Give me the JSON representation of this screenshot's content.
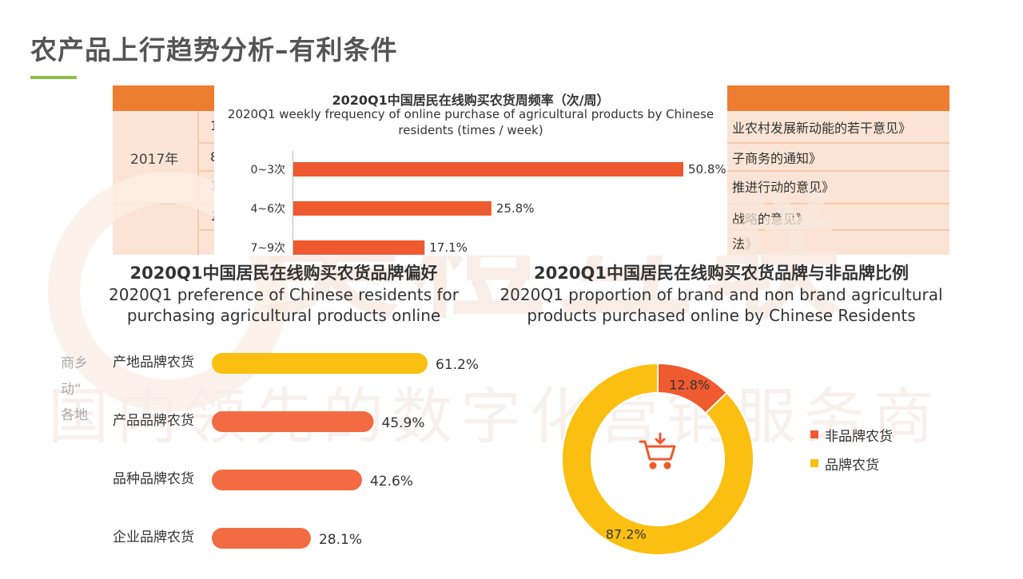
{
  "page": {
    "title": "农产品上行趋势分析–有利条件",
    "watermark_main": "美橙互联",
    "watermark_sub": "国内领先的数字化营销服务商"
  },
  "background_table": {
    "year": "2017年",
    "fragments_left": [
      "1",
      "8",
      "1",
      "1"
    ],
    "fragments_right": [
      "业农村发展新动能的若干意见》",
      "子商务的通知》",
      "推进行动的意见》",
      "战略的意见》",
      "法》"
    ],
    "left_text_lines": [
      "商乡",
      "动“",
      "各地"
    ]
  },
  "chart_data": [
    {
      "type": "bar",
      "orientation": "horizontal",
      "title": "2020Q1中国居民在线购买农货周频率（次/周）",
      "subtitle": "2020Q1 weekly frequency of online purchase of agricultural products by Chinese residents (times / week)",
      "categories": [
        "0~3次",
        "4~6次",
        "7~9次"
      ],
      "values": [
        50.8,
        25.8,
        17.1
      ],
      "unit": "%",
      "color": "#ee5a2f"
    },
    {
      "type": "bar",
      "orientation": "horizontal",
      "title": "2020Q1中国居民在线购买农货品牌偏好",
      "subtitle": "2020Q1 preference of Chinese residents for purchasing agricultural products online",
      "categories": [
        "产地品牌农货",
        "产品品牌农货",
        "品种品牌农货",
        "企业品牌农货"
      ],
      "values": [
        61.2,
        45.9,
        42.6,
        28.1
      ],
      "unit": "%",
      "colors": [
        "#fbbf12",
        "#f26b42",
        "#f26b42",
        "#f26b42"
      ]
    },
    {
      "type": "pie",
      "variant": "donut",
      "title": "2020Q1中国居民在线购买农货品牌与非品牌比例",
      "subtitle": "2020Q1 proportion of brand and non brand agricultural products purchased online by Chinese Residents",
      "labels": [
        "非品牌农货",
        "品牌农货"
      ],
      "values": [
        12.8,
        87.2
      ],
      "unit": "%",
      "colors": [
        "#ef5a2e",
        "#fbbf12"
      ],
      "center_icon": "shopping-cart-icon"
    }
  ]
}
